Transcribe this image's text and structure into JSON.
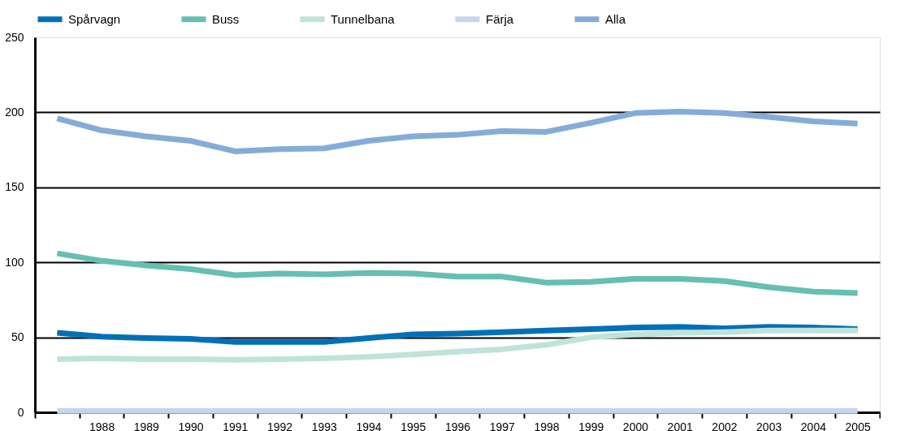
{
  "chart_data": {
    "type": "line",
    "categories": [
      null,
      "1988",
      "1989",
      "1990",
      "1991",
      "1992",
      "1993",
      "1994",
      "1995",
      "1996",
      "1997",
      "1998",
      "1999",
      "2000",
      "2001",
      "2002",
      "2003",
      "2004",
      "2005"
    ],
    "series": [
      {
        "name": "Spårvagn",
        "color": "#0070b8",
        "values": [
          53,
          50.5,
          49.5,
          49,
          47,
          47,
          47,
          49.5,
          52,
          52.5,
          53.5,
          54.5,
          55.5,
          56.5,
          57,
          56,
          57,
          56.5,
          55.5
        ]
      },
      {
        "name": "Buss",
        "color": "#66bfb0",
        "values": [
          106,
          101,
          98,
          95.5,
          91.5,
          92.5,
          92,
          93,
          92.5,
          90.5,
          90.5,
          86.5,
          87,
          89,
          89,
          87.5,
          83.5,
          80.5,
          79.5
        ]
      },
      {
        "name": "Tunnelbana",
        "color": "#bfe3da",
        "values": [
          35.5,
          36,
          35.5,
          35.5,
          35,
          35.5,
          36,
          37,
          38.5,
          40.5,
          42,
          45,
          50,
          52,
          53,
          53.5,
          54.5,
          54.5,
          54.5
        ]
      },
      {
        "name": "Färja",
        "color": "#c5d5ec",
        "values": [
          1,
          1,
          1,
          1,
          1,
          1,
          1,
          1,
          1,
          1,
          1,
          1,
          1,
          1,
          1,
          1,
          1,
          1,
          1
        ]
      },
      {
        "name": "Alla",
        "color": "#84acd9",
        "values": [
          196,
          188,
          184,
          181,
          174,
          175.5,
          176,
          181,
          184,
          185,
          187.5,
          187,
          193,
          199.5,
          200.5,
          199.5,
          197,
          194,
          192.5
        ]
      }
    ],
    "ylim": [
      0,
      250
    ],
    "yticks": [
      0,
      50,
      100,
      150,
      200,
      250
    ],
    "grid": "y",
    "legend": "top",
    "marker": "none",
    "line_style": "solid"
  }
}
